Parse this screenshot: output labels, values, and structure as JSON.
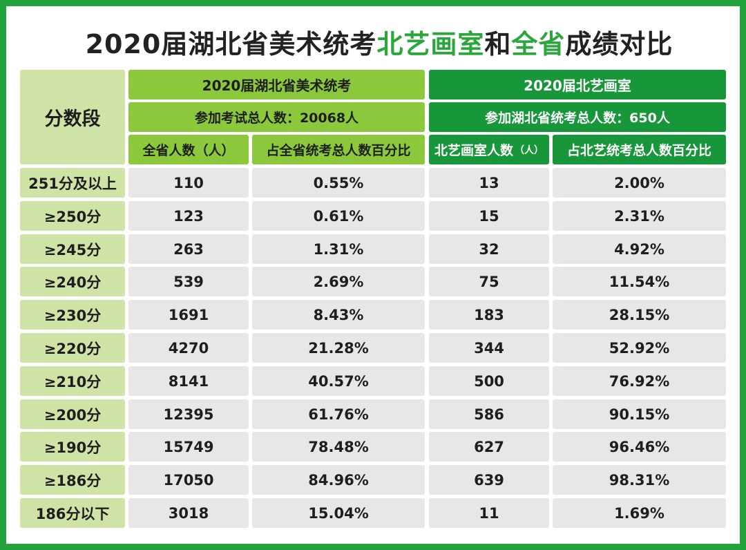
{
  "title": {
    "part1": "2020届湖北省美术统考",
    "part2": "北艺画室",
    "part3": "和",
    "part4": "全省",
    "part5": "成绩对比"
  },
  "header": {
    "corner": "分数段",
    "province_title": "2020届湖北省美术统考",
    "province_total": "参加考试总人数：20068人",
    "studio_title": "2020届北艺画室",
    "studio_total": "参加湖北省统考总人数：650人",
    "col1": "全省人数（人）",
    "col2": "占全省统考总人数百分比",
    "col3_main": "北艺画室人数",
    "col3_unit": "（人）",
    "col4": "占北艺统考总人数百分比"
  },
  "rows": [
    {
      "label": "251分及以上",
      "province_count": "110",
      "province_pct": "0.55%",
      "studio_count": "13",
      "studio_pct": "2.00%"
    },
    {
      "label": "≥250分",
      "province_count": "123",
      "province_pct": "0.61%",
      "studio_count": "15",
      "studio_pct": "2.31%"
    },
    {
      "label": "≥245分",
      "province_count": "263",
      "province_pct": "1.31%",
      "studio_count": "32",
      "studio_pct": "4.92%"
    },
    {
      "label": "≥240分",
      "province_count": "539",
      "province_pct": "2.69%",
      "studio_count": "75",
      "studio_pct": "11.54%"
    },
    {
      "label": "≥230分",
      "province_count": "1691",
      "province_pct": "8.43%",
      "studio_count": "183",
      "studio_pct": "28.15%"
    },
    {
      "label": "≥220分",
      "province_count": "4270",
      "province_pct": "21.28%",
      "studio_count": "344",
      "studio_pct": "52.92%"
    },
    {
      "label": "≥210分",
      "province_count": "8141",
      "province_pct": "40.57%",
      "studio_count": "500",
      "studio_pct": "76.92%"
    },
    {
      "label": "≥200分",
      "province_count": "12395",
      "province_pct": "61.76%",
      "studio_count": "586",
      "studio_pct": "90.15%"
    },
    {
      "label": "≥190分",
      "province_count": "15749",
      "province_pct": "78.48%",
      "studio_count": "627",
      "studio_pct": "96.46%"
    },
    {
      "label": "≥186分",
      "province_count": "17050",
      "province_pct": "84.96%",
      "studio_count": "639",
      "studio_pct": "98.31%"
    },
    {
      "label": "186分以下",
      "province_count": "3018",
      "province_pct": "15.04%",
      "studio_count": "11",
      "studio_pct": "1.69%"
    }
  ],
  "colors": {
    "frame": "#23a33c",
    "province_header": "#8cc83c",
    "studio_header": "#18963a",
    "label_cell": "#cfe3a7",
    "data_cell": "#e8e6e6",
    "title_highlight": "#2aa63b"
  }
}
